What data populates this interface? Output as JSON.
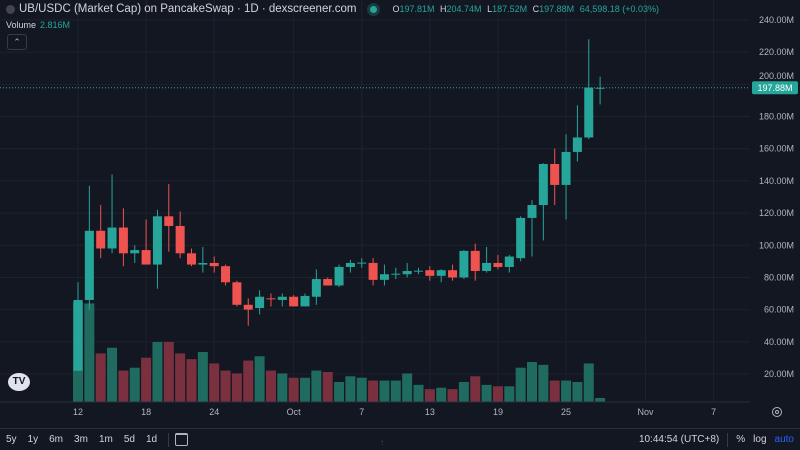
{
  "header": {
    "symbol_icon": "token-icon",
    "title": "UB/USDC (Market Cap) on PancakeSwap · 1D · dexscreener.com",
    "open_label": "O",
    "open": "197.81M",
    "high_label": "H",
    "high": "204.74M",
    "low_label": "L",
    "low": "187.52M",
    "close_label": "C",
    "close": "197.88M",
    "change": "64,598.18 (+0.03%)",
    "volume_label": "Volume",
    "volume": "2.816M",
    "collapse_icon": "chevron-up-icon"
  },
  "price_axis": {
    "ticks": [
      "240.00M",
      "220.00M",
      "200.00M",
      "180.00M",
      "160.00M",
      "140.00M",
      "120.00M",
      "100.00M",
      "80.00M",
      "60.00M",
      "40.00M",
      "20.00M"
    ],
    "current": "197.88M"
  },
  "time_axis": {
    "ticks": [
      "12",
      "18",
      "24",
      "Oct",
      "7",
      "13",
      "19",
      "25",
      "Nov",
      "7"
    ],
    "settings_icon": "gear-icon"
  },
  "bottom_bar": {
    "ranges": [
      "5y",
      "1y",
      "6m",
      "3m",
      "1m",
      "5d",
      "1d"
    ],
    "calendar_icon": "calendar-icon",
    "time": "10:44:54 (UTC+8)",
    "percent": "%",
    "log": "log",
    "auto": "auto"
  },
  "logo": "TV",
  "colors": {
    "up": "#26a69a",
    "down": "#ef5350",
    "background": "#131722",
    "volume_up": "#1f6b60",
    "volume_down": "#7b3040"
  },
  "chart_data": {
    "type": "candlestick",
    "interval": "1D",
    "y_unit": "M",
    "ylim": [
      0,
      240
    ],
    "current_price": 197.88,
    "first_date": "Sep 12",
    "ohlc": [
      [
        22,
        77,
        22,
        66
      ],
      [
        66,
        137,
        60,
        109
      ],
      [
        109,
        125,
        92,
        98
      ],
      [
        98,
        144,
        95,
        111
      ],
      [
        111,
        123,
        87,
        95
      ],
      [
        95,
        100,
        89,
        97
      ],
      [
        97,
        116,
        88,
        88
      ],
      [
        88,
        122,
        73,
        118
      ],
      [
        118,
        138,
        96,
        112
      ],
      [
        112,
        121,
        92,
        95
      ],
      [
        95,
        98,
        87,
        88
      ],
      [
        88,
        99,
        83,
        89
      ],
      [
        89,
        93,
        83,
        87
      ],
      [
        87,
        88,
        75,
        77
      ],
      [
        77,
        78,
        62,
        63
      ],
      [
        63,
        67,
        50,
        60
      ],
      [
        61,
        72,
        57,
        68
      ],
      [
        67,
        70,
        62,
        66.5
      ],
      [
        66,
        70,
        62,
        68
      ],
      [
        68,
        69,
        62,
        62
      ],
      [
        62,
        70,
        62,
        68.5
      ],
      [
        68,
        85,
        63,
        79
      ],
      [
        79,
        80,
        75,
        75
      ],
      [
        75,
        88,
        74,
        86.5
      ],
      [
        86.5,
        91,
        83,
        89
      ],
      [
        89,
        92,
        86,
        89.2
      ],
      [
        89,
        92,
        75,
        78.5
      ],
      [
        78.5,
        88,
        75,
        82
      ],
      [
        82,
        86,
        79,
        82.3
      ],
      [
        82,
        89,
        80,
        84
      ],
      [
        84,
        86,
        82,
        84.2
      ],
      [
        84.5,
        87,
        78,
        81
      ],
      [
        81,
        85,
        77,
        84.5
      ],
      [
        84.5,
        88,
        78,
        80
      ],
      [
        80,
        97,
        79,
        96.5
      ],
      [
        96.5,
        101,
        78,
        84
      ],
      [
        84,
        99,
        83,
        89
      ],
      [
        89,
        94,
        85,
        86.5
      ],
      [
        86.5,
        94,
        83,
        93
      ],
      [
        92,
        118,
        90,
        117
      ],
      [
        117,
        128,
        93,
        125
      ],
      [
        125,
        151,
        103,
        150.5
      ],
      [
        150.5,
        160,
        125,
        137.5
      ],
      [
        137.5,
        169,
        116,
        158
      ],
      [
        158,
        187,
        152,
        167
      ],
      [
        167,
        228,
        166,
        198
      ],
      [
        197.81,
        204.74,
        187.52,
        197.88
      ]
    ],
    "volume": [
      70,
      69,
      34,
      38,
      22,
      24,
      31,
      42,
      42,
      34,
      30,
      35,
      27,
      22,
      20,
      29,
      32,
      22,
      20,
      17,
      17,
      22,
      21,
      14,
      18,
      17,
      15,
      15,
      15,
      20,
      12,
      9,
      10,
      9,
      14,
      18,
      12,
      11,
      11,
      24,
      28,
      26,
      15,
      15,
      14,
      27,
      2.816
    ]
  }
}
